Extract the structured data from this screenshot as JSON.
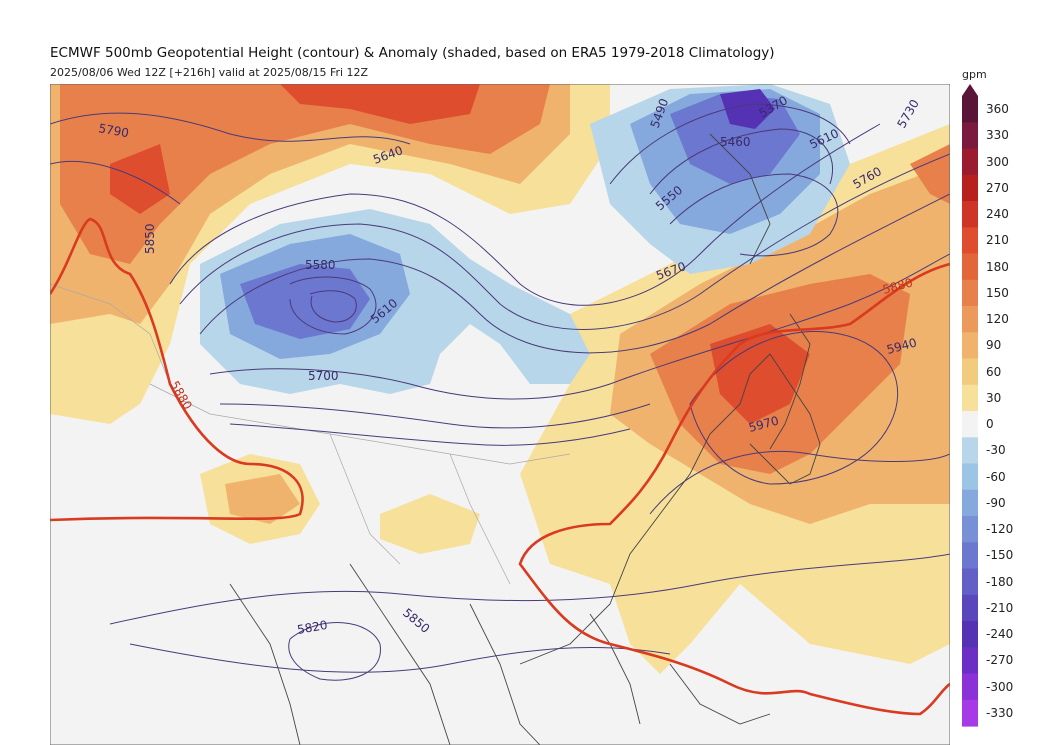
{
  "title": "ECMWF 500mb Geopotential Height (contour) & Anomaly (shaded, based on ERA5 1979-2018 Climatology)",
  "subtitle": "2025/08/06 Wed 12Z [+216h] valid at 2025/08/15 Fri 12Z",
  "colorbar": {
    "unit": "gpm",
    "ticks": [
      "360",
      "330",
      "300",
      "270",
      "240",
      "210",
      "180",
      "150",
      "120",
      "90",
      "60",
      "30",
      "0",
      "-30",
      "-60",
      "-90",
      "-120",
      "-150",
      "-180",
      "-210",
      "-240",
      "-270",
      "-300",
      "-330"
    ],
    "colors": [
      "#5a1438",
      "#7a1a3e",
      "#9b1c2e",
      "#b8201e",
      "#cf3526",
      "#dd4d2e",
      "#e3663a",
      "#e7804a",
      "#eb9a5c",
      "#efb36d",
      "#f3cb7f",
      "#f7e09a",
      "#f3f3f3",
      "#b7d6e9",
      "#9cc4e4",
      "#85a9dd",
      "#7790d6",
      "#6c77cf",
      "#6260c6",
      "#5a47bc",
      "#5432b3",
      "#6b2fc5",
      "#8a31d8",
      "#a63ae6"
    ]
  },
  "contour_labels": [
    "5790",
    "5850",
    "5880",
    "5640",
    "5580",
    "5610",
    "5700",
    "5490",
    "5370",
    "5460",
    "5550",
    "5670",
    "5610",
    "5760",
    "5730",
    "5880",
    "5940",
    "5970",
    "5820",
    "5850"
  ],
  "colors": {
    "contour": "#4a3a7a",
    "ridge_5880": "#d93a20",
    "coastline": "#444444",
    "border": "#aaaaaa"
  }
}
